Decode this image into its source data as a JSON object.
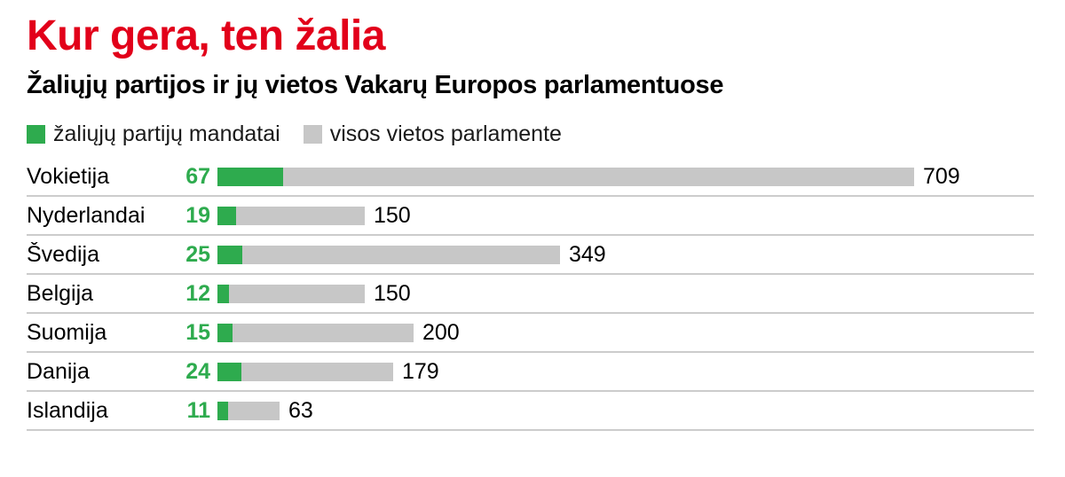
{
  "header": {
    "title": "Kur gera, ten žalia",
    "subtitle": "Žaliųjų partijos ir jų vietos Vakarų Europos parlamentuose"
  },
  "legend": {
    "green_label": "žaliųjų partijų mandatai",
    "gray_label": "visos vietos parlamente"
  },
  "colors": {
    "accent_red": "#e2001a",
    "green": "#2eab4e",
    "gray": "#c7c7c7"
  },
  "chart_data": {
    "type": "bar",
    "orientation": "horizontal",
    "title": "Kur gera, ten žalia",
    "subtitle": "Žaliųjų partijos ir jų vietos Vakarų Europos parlamentuose",
    "categories": [
      "Vokietija",
      "Nyderlandai",
      "Švedija",
      "Belgija",
      "Suomija",
      "Danija",
      "Islandija"
    ],
    "series": [
      {
        "name": "žaliųjų partijų mandatai",
        "color": "#2eab4e",
        "values": [
          67,
          19,
          25,
          12,
          15,
          24,
          11
        ]
      },
      {
        "name": "visos vietos parlamente",
        "color": "#c7c7c7",
        "values": [
          709,
          150,
          349,
          150,
          200,
          179,
          63
        ]
      }
    ],
    "xlim": [
      0,
      709
    ],
    "grid": false,
    "legend_position": "top",
    "value_labels": "both-ends"
  }
}
